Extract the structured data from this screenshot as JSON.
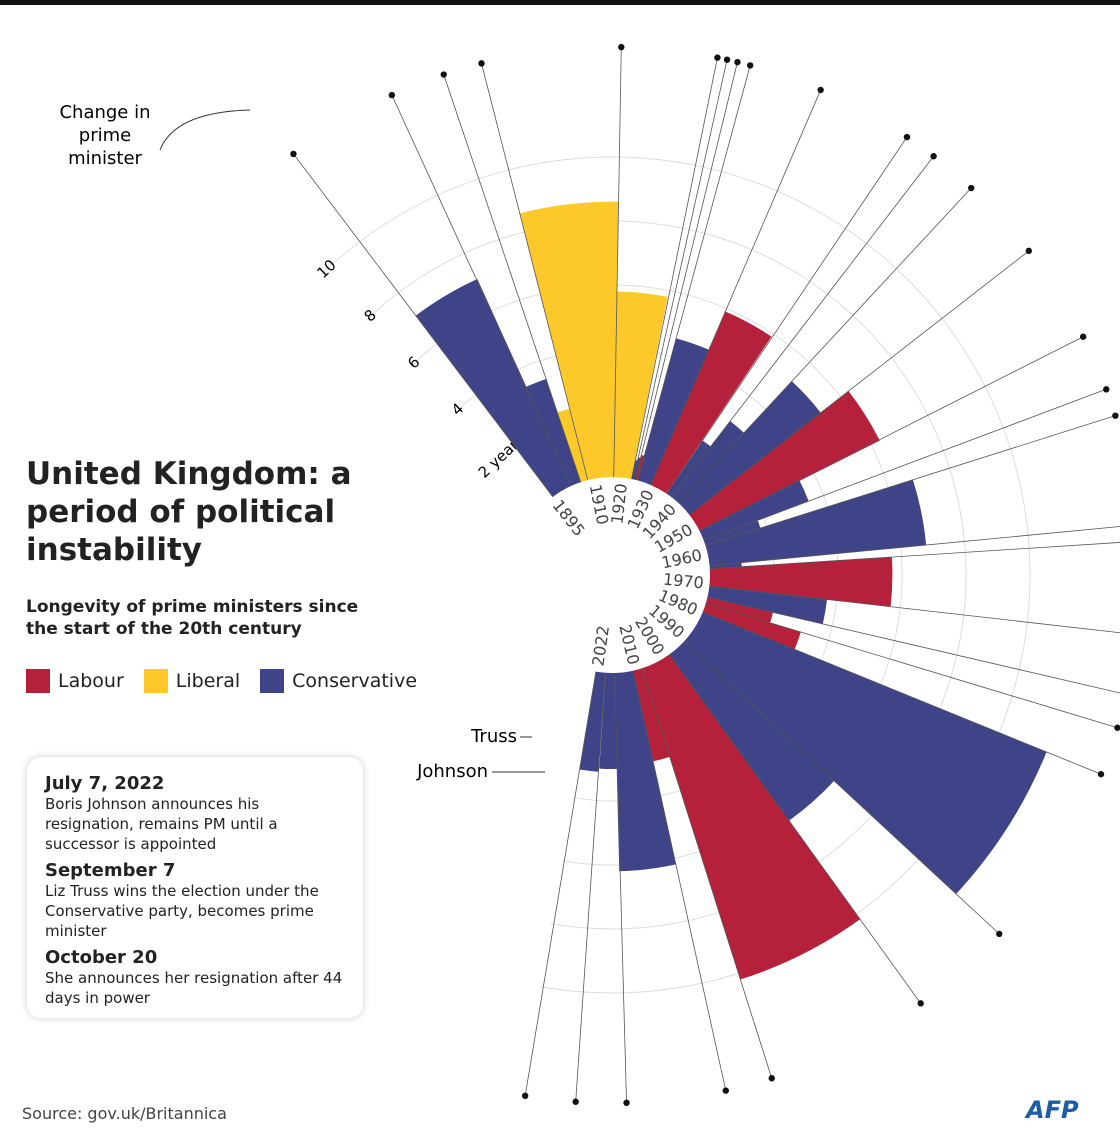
{
  "chart_data": {
    "type": "radial-bar",
    "title": "United Kingdom: a period of political instability",
    "subtitle": "Longevity of prime ministers since the start of the 20th century",
    "xlim": [
      1895,
      2023
    ],
    "xticks": [
      1895,
      1910,
      1920,
      1930,
      1940,
      1950,
      1960,
      1970,
      1980,
      1990,
      2000,
      2010,
      2022
    ],
    "ylim": [
      0,
      12
    ],
    "yticks": [
      {
        "value": 2,
        "label": "2 years"
      },
      4,
      6,
      8,
      10
    ],
    "grid": true,
    "series": [
      {
        "name": "Labour",
        "color": "#b5213a",
        "x": [
          1924.05,
          1929.4,
          1945.6,
          1964.8,
          1974.2,
          1976.3,
          1997.3,
          2007.5
        ],
        "values": [
          0.8,
          5.9,
          6.3,
          5.7,
          2.1,
          3.1,
          10.2,
          2.9
        ]
      },
      {
        "name": "Liberal",
        "color": "#fcc82a",
        "x": [
          1905.9,
          1908.3,
          1916.9
        ],
        "values": [
          2.3,
          8.6,
          5.8
        ]
      },
      {
        "name": "Conservative",
        "color": "#3f4488",
        "x": [
          1895.5,
          1902.5,
          1922.8,
          1923.4,
          1924.85,
          1935.4,
          1937.4,
          1940.4,
          1951.8,
          1955.3,
          1957.0,
          1963.8,
          1970.5,
          1979.3,
          1990.9,
          2010.4,
          2016.5,
          2019.6,
          2022.7
        ],
        "values": [
          7.1,
          3.4,
          0.6,
          0.7,
          4.6,
          2.0,
          3.0,
          5.2,
          3.5,
          1.8,
          6.8,
          1.0,
          3.7,
          11.6,
          6.4,
          6.2,
          3.0,
          3.1,
          0.1
        ]
      }
    ],
    "annotations": {
      "change": "Change in prime minister",
      "truss": "Truss",
      "johnson": "Johnson"
    }
  },
  "notes": [
    {
      "date": "July 7, 2022",
      "text": "Boris Johnson announces his resignation, remains PM until a successor is appointed"
    },
    {
      "date": "September 7",
      "text": "Liz Truss wins the election under the Conservative party, becomes prime minister"
    },
    {
      "date": "October 20",
      "text": "She announces her resignation after 44 days in power"
    }
  ],
  "source": "Source: gov.uk/Britannica",
  "logo": "AFP"
}
